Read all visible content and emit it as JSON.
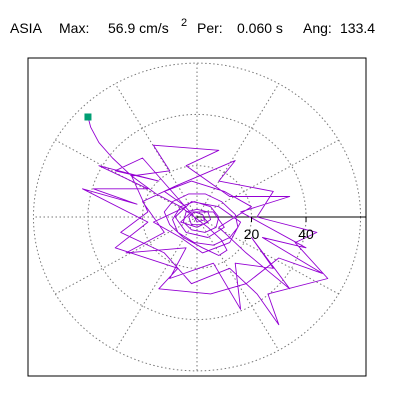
{
  "header": {
    "station": "ASIA",
    "max_label": "Max:",
    "max_value": "56.9 cm/s",
    "max_exponent": "2",
    "per_label": "Per:",
    "per_value": "0.060 s",
    "ang_label": "Ang:",
    "ang_value": "133.4"
  },
  "chart_data": {
    "type": "line",
    "plot": "polar-orbit",
    "title": "",
    "xlim": [
      -62,
      62
    ],
    "ylim": [
      -62,
      62
    ],
    "radial_rings": [
      20,
      40,
      60
    ],
    "radial_tick_labels": [
      "20",
      "40"
    ],
    "angular_spokes_deg": [
      0,
      30,
      60,
      90,
      120,
      150,
      180,
      210,
      240,
      270,
      300,
      330
    ],
    "grid": true,
    "series": [
      {
        "color": "#9400d3",
        "points": [
          [
            -40,
            39
          ],
          [
            -39,
            35
          ],
          [
            -36,
            29
          ],
          [
            -31,
            23
          ],
          [
            -24,
            16
          ],
          [
            -15,
            9
          ],
          [
            -6,
            4
          ],
          [
            -1,
            0
          ],
          [
            4,
            -4
          ],
          [
            9,
            -9
          ],
          [
            11,
            -13
          ],
          [
            8,
            -15
          ],
          [
            2,
            -12
          ],
          [
            -5,
            -8
          ],
          [
            -10,
            -3
          ],
          [
            -12,
            2
          ],
          [
            -9,
            6
          ],
          [
            -3,
            9
          ],
          [
            3,
            9
          ],
          [
            9,
            6
          ],
          [
            14,
            1
          ],
          [
            15,
            -4
          ],
          [
            12,
            -8
          ],
          [
            6,
            -11
          ],
          [
            -1,
            -10
          ],
          [
            -7,
            -6
          ],
          [
            -9,
            -1
          ],
          [
            -6,
            4
          ],
          [
            -1,
            6
          ],
          [
            5,
            4
          ],
          [
            8,
            0
          ],
          [
            7,
            -4
          ],
          [
            3,
            -6
          ],
          [
            -2,
            -5
          ],
          [
            -5,
            -2
          ],
          [
            -4,
            2
          ],
          [
            0,
            3
          ],
          [
            4,
            2
          ],
          [
            5,
            -1
          ],
          [
            2,
            -3
          ],
          [
            -2,
            -3
          ],
          [
            -3,
            0
          ],
          [
            -1,
            2
          ],
          [
            2,
            1
          ],
          [
            3,
            -1
          ],
          [
            0,
            -2
          ],
          [
            -1,
            0
          ],
          [
            -20,
            23
          ],
          [
            -30,
            18
          ],
          [
            -14,
            14
          ],
          [
            -36,
            20
          ],
          [
            -18,
            11
          ],
          [
            -38,
            11
          ],
          [
            -22,
            5
          ],
          [
            -42,
            11
          ],
          [
            -18,
            -2
          ],
          [
            -30,
            -12
          ],
          [
            -7,
            -20
          ],
          [
            -14,
            -28
          ],
          [
            5,
            -30
          ],
          [
            18,
            -26
          ],
          [
            30,
            -16
          ],
          [
            46,
            -22
          ],
          [
            24,
            -8
          ],
          [
            40,
            -12
          ],
          [
            16,
            2
          ],
          [
            34,
            8
          ],
          [
            12,
            8
          ],
          [
            -4,
            20
          ],
          [
            8,
            26
          ],
          [
            -16,
            28
          ],
          [
            -10,
            18
          ],
          [
            -24,
            16
          ],
          [
            -18,
            2
          ],
          [
            -28,
            -6
          ],
          [
            -12,
            -14
          ],
          [
            -2,
            -26
          ],
          [
            12,
            -20
          ],
          [
            22,
            -30
          ],
          [
            30,
            -42
          ],
          [
            26,
            -30
          ],
          [
            48,
            -24
          ],
          [
            36,
            -10
          ],
          [
            44,
            -6
          ],
          [
            22,
            0
          ],
          [
            28,
            10
          ],
          [
            8,
            14
          ],
          [
            14,
            22
          ],
          [
            -8,
            12
          ],
          [
            -20,
            6
          ],
          [
            -12,
            -6
          ],
          [
            -26,
            -14
          ],
          [
            -4,
            -12
          ],
          [
            -10,
            -24
          ],
          [
            6,
            -18
          ],
          [
            16,
            -36
          ],
          [
            14,
            -18
          ],
          [
            28,
            -20
          ],
          [
            20,
            -8
          ],
          [
            34,
            -28
          ],
          [
            18,
            -14
          ],
          [
            8,
            -4
          ],
          [
            20,
            4
          ],
          [
            10,
            10
          ],
          [
            -2,
            14
          ],
          [
            -12,
            10
          ],
          [
            -4,
            4
          ],
          [
            -16,
            -2
          ],
          [
            -6,
            -8
          ],
          [
            2,
            -14
          ],
          [
            12,
            -10
          ],
          [
            16,
            -2
          ],
          [
            8,
            4
          ],
          [
            -2,
            6
          ],
          [
            -8,
            0
          ],
          [
            -4,
            -6
          ],
          [
            4,
            -8
          ],
          [
            10,
            -4
          ],
          [
            6,
            2
          ],
          [
            -2,
            2
          ],
          [
            -6,
            -2
          ],
          [
            0,
            -4
          ],
          [
            4,
            -2
          ],
          [
            2,
            0
          ]
        ]
      }
    ],
    "start_marker": {
      "color": "#009e73",
      "x": -40,
      "y": 39
    }
  }
}
